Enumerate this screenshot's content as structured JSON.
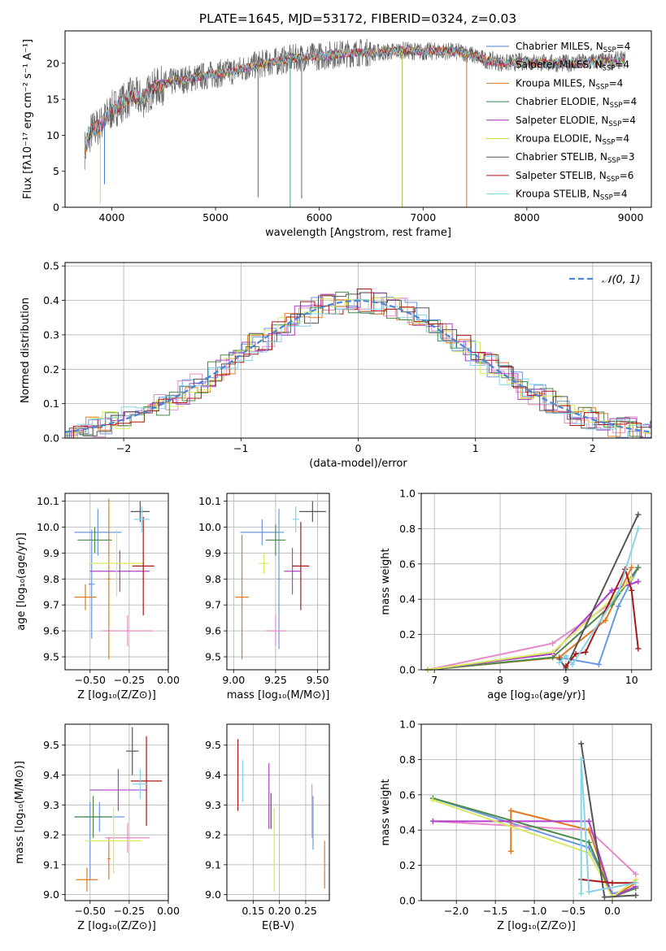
{
  "figure": {
    "title": "PLATE=1645, MJD=53172, FIBERID=0324, z=0.03"
  },
  "legend1": [
    {
      "name": "Chabrier MILES, N",
      "sub": "SSP",
      "val": "=4",
      "color": "#4a7cc8"
    },
    {
      "name": "Salpeter MILES, N",
      "sub": "SSP",
      "val": "=4",
      "color": "#d9447b"
    },
    {
      "name": "Kroupa MILES, N",
      "sub": "SSP",
      "val": "=4",
      "color": "#d07a1c"
    },
    {
      "name": "Chabrier ELODIE, N",
      "sub": "SSP",
      "val": "=4",
      "color": "#2e8b57"
    },
    {
      "name": "Salpeter ELODIE, N",
      "sub": "SSP",
      "val": "=4",
      "color": "#a42fb8"
    },
    {
      "name": "Kroupa ELODIE, N",
      "sub": "SSP",
      "val": "=4",
      "color": "#d5d93a"
    },
    {
      "name": "Chabrier STELIB, N",
      "sub": "SSP",
      "val": "=3",
      "color": "#555555"
    },
    {
      "name": "Salpeter STELIB, N",
      "sub": "SSP",
      "val": "=6",
      "color": "#b01010"
    },
    {
      "name": "Kroupa STELIB, N",
      "sub": "SSP",
      "val": "=4",
      "color": "#7fd6e0"
    }
  ],
  "series_colors": [
    "#6a98e0",
    "#e68ac8",
    "#e07b22",
    "#4a8a4a",
    "#b040c8",
    "#d8ea60",
    "#555555",
    "#a81818",
    "#86d4e6"
  ],
  "chart_data": [
    {
      "id": "spectrum",
      "type": "line",
      "title": "PLATE=1645, MJD=53172, FIBERID=0324, z=0.03",
      "xlabel": "wavelength [Angstrom, rest frame]",
      "ylabel": "Flux [fλ10⁻¹⁷ erg cm⁻² s⁻¹ A⁻¹]",
      "xlim": [
        3550,
        9200
      ],
      "ylim": [
        0,
        24.5
      ],
      "xticks": [
        4000,
        5000,
        6000,
        7000,
        8000,
        9000
      ],
      "yticks": [
        0,
        5,
        10,
        15,
        20
      ],
      "continuum": [
        [
          3740,
          8
        ],
        [
          3800,
          10.5
        ],
        [
          3900,
          11.5
        ],
        [
          4000,
          13.5
        ],
        [
          4100,
          14.5
        ],
        [
          4200,
          15.5
        ],
        [
          4300,
          15.0
        ],
        [
          4400,
          16.5
        ],
        [
          4600,
          17.5
        ],
        [
          4800,
          18.0
        ],
        [
          5000,
          18.5
        ],
        [
          5200,
          19.0
        ],
        [
          5400,
          19.8
        ],
        [
          5600,
          20.3
        ],
        [
          5800,
          20.8
        ],
        [
          6000,
          21.0
        ],
        [
          6200,
          21.3
        ],
        [
          6400,
          21.5
        ],
        [
          6600,
          21.5
        ],
        [
          6800,
          21.8
        ],
        [
          7000,
          21.6
        ],
        [
          7200,
          21.7
        ],
        [
          7400,
          21.5
        ],
        [
          7600,
          20.5
        ],
        [
          7800,
          20.0
        ],
        [
          8000,
          20.3
        ],
        [
          8200,
          20.0
        ],
        [
          8400,
          20.0
        ],
        [
          8600,
          20.2
        ],
        [
          8800,
          20.3
        ],
        [
          8950,
          20.5
        ]
      ],
      "dips": [
        [
          3890,
          0.5
        ],
        [
          3930,
          3.2
        ],
        [
          5410,
          1.4
        ],
        [
          5720,
          0.0
        ],
        [
          5830,
          1.2
        ],
        [
          6800,
          0.0
        ],
        [
          7420,
          0.0
        ]
      ]
    },
    {
      "id": "residuals",
      "type": "histogram",
      "xlabel": "(data-model)/error",
      "ylabel": "Normed distribution",
      "xlim": [
        -2.5,
        2.5
      ],
      "ylim": [
        0,
        0.51
      ],
      "xticks": [
        -2,
        -1,
        0,
        1,
        2
      ],
      "yticks": [
        0.0,
        0.1,
        0.2,
        0.3,
        0.4,
        0.5
      ],
      "legend": "𝒩(0, 1)",
      "curve": {
        "mean": 0,
        "sigma": 1
      }
    },
    {
      "id": "age_vs_Z",
      "type": "errorbar",
      "xlabel": "Z [log₁₀(Z/Z⊙)]",
      "ylabel": "age  [log₁₀(age/yr)]",
      "xlim": [
        -0.66,
        0.0
      ],
      "ylim": [
        9.45,
        10.13
      ],
      "xticks": [
        -0.5,
        -0.25,
        0.0
      ],
      "xtick_labels": [
        "−0.50",
        "−0.25",
        "0.00"
      ],
      "yticks": [
        9.5,
        9.6,
        9.7,
        9.8,
        9.9,
        10.0,
        10.1
      ],
      "points": [
        {
          "x": -0.45,
          "y": 9.98,
          "xerr": 0.15,
          "yerr": 0.09,
          "c": 0
        },
        {
          "x": -0.49,
          "y": 9.78,
          "xerr": 0.02,
          "yerr": 0.21,
          "c": 0
        },
        {
          "x": -0.26,
          "y": 9.6,
          "xerr": 0.16,
          "yerr": 0.06,
          "c": 1
        },
        {
          "x": -0.53,
          "y": 9.73,
          "xerr": 0.07,
          "yerr": 0.05,
          "c": 2
        },
        {
          "x": -0.38,
          "y": 9.8,
          "xerr": 0.01,
          "yerr": 0.31,
          "c": 2
        },
        {
          "x": -0.47,
          "y": 9.95,
          "xerr": 0.11,
          "yerr": 0.05,
          "c": 3
        },
        {
          "x": -0.31,
          "y": 9.83,
          "xerr": 0.19,
          "yerr": 0.08,
          "c": 4
        },
        {
          "x": -0.33,
          "y": 9.86,
          "xerr": 0.18,
          "yerr": 0.13,
          "c": 5
        },
        {
          "x": -0.18,
          "y": 10.06,
          "xerr": 0.06,
          "yerr": 0.04,
          "c": 6
        },
        {
          "x": -0.16,
          "y": 9.85,
          "xerr": 0.07,
          "yerr": 0.19,
          "c": 7
        },
        {
          "x": -0.17,
          "y": 10.03,
          "xerr": 0.05,
          "yerr": 0.05,
          "c": 8
        }
      ]
    },
    {
      "id": "age_vs_mass",
      "type": "errorbar",
      "xlabel": "mass [log₁₀(M/M⊙)]",
      "xlim": [
        8.96,
        9.57
      ],
      "ylim": [
        9.45,
        10.13
      ],
      "xticks": [
        9.0,
        9.25,
        9.5
      ],
      "xtick_labels": [
        "9.00",
        "9.25",
        "9.50"
      ],
      "yticks": [
        9.5,
        9.6,
        9.7,
        9.8,
        9.9,
        10.0,
        10.1
      ],
      "points": [
        {
          "x": 9.17,
          "y": 9.98,
          "xerr": 0.13,
          "yerr": 0.05,
          "c": 0
        },
        {
          "x": 9.27,
          "y": 9.8,
          "xerr": 0.01,
          "yerr": 0.27,
          "c": 0
        },
        {
          "x": 9.25,
          "y": 9.6,
          "xerr": 0.06,
          "yerr": 0.06,
          "c": 1
        },
        {
          "x": 9.05,
          "y": 9.73,
          "xerr": 0.04,
          "yerr": 0.24,
          "c": 2
        },
        {
          "x": 9.25,
          "y": 9.95,
          "xerr": 0.06,
          "yerr": 0.06,
          "c": 3
        },
        {
          "x": 9.35,
          "y": 9.83,
          "xerr": 0.05,
          "yerr": 0.09,
          "c": 4
        },
        {
          "x": 9.18,
          "y": 9.86,
          "xerr": 0.03,
          "yerr": 0.04,
          "c": 5
        },
        {
          "x": 9.47,
          "y": 10.06,
          "xerr": 0.08,
          "yerr": 0.04,
          "c": 6
        },
        {
          "x": 9.4,
          "y": 9.85,
          "xerr": 0.05,
          "yerr": 0.17,
          "c": 7
        },
        {
          "x": 9.37,
          "y": 10.03,
          "xerr": 0.02,
          "yerr": 0.05,
          "c": 8
        }
      ]
    },
    {
      "id": "mass_weight_vs_age",
      "type": "line",
      "xlabel": "age  [log₁₀(age/yr)]",
      "ylabel": "mass weight",
      "xlim": [
        6.8,
        10.3
      ],
      "ylim": [
        0,
        1.0
      ],
      "xticks": [
        7,
        8,
        9,
        10
      ],
      "yticks": [
        0.0,
        0.2,
        0.4,
        0.6,
        0.8,
        1.0
      ],
      "series": [
        {
          "c": 0,
          "points": [
            [
              6.9,
              0.0
            ],
            [
              8.9,
              0.07
            ],
            [
              9.5,
              0.03
            ],
            [
              9.8,
              0.36
            ],
            [
              10.1,
              0.58
            ]
          ]
        },
        {
          "c": 1,
          "points": [
            [
              6.9,
              0.0
            ],
            [
              8.8,
              0.15
            ],
            [
              9.7,
              0.38
            ],
            [
              10.1,
              0.58
            ]
          ]
        },
        {
          "c": 2,
          "points": [
            [
              6.9,
              0.0
            ],
            [
              8.9,
              0.07
            ],
            [
              9.6,
              0.28
            ],
            [
              10.0,
              0.58
            ]
          ]
        },
        {
          "c": 3,
          "points": [
            [
              6.9,
              0.0
            ],
            [
              8.8,
              0.07
            ],
            [
              9.7,
              0.37
            ],
            [
              10.1,
              0.58
            ]
          ]
        },
        {
          "c": 4,
          "points": [
            [
              6.9,
              0.0
            ],
            [
              8.8,
              0.09
            ],
            [
              9.7,
              0.45
            ],
            [
              10.1,
              0.5
            ]
          ]
        },
        {
          "c": 5,
          "points": [
            [
              6.9,
              0.0
            ],
            [
              8.8,
              0.1
            ],
            [
              9.7,
              0.4
            ],
            [
              10.0,
              0.52
            ]
          ]
        },
        {
          "c": 6,
          "points": [
            [
              8.9,
              0.06
            ],
            [
              9.0,
              0.01
            ],
            [
              10.1,
              0.88
            ]
          ]
        },
        {
          "c": 7,
          "points": [
            [
              9.0,
              0.02
            ],
            [
              9.15,
              0.09
            ],
            [
              9.3,
              0.1
            ],
            [
              9.9,
              0.57
            ],
            [
              10.0,
              0.45
            ],
            [
              10.1,
              0.12
            ]
          ]
        },
        {
          "c": 8,
          "points": [
            [
              8.9,
              0.04
            ],
            [
              9.0,
              0.08
            ],
            [
              9.1,
              0.03
            ],
            [
              9.8,
              0.44
            ],
            [
              10.1,
              0.8
            ]
          ]
        }
      ]
    },
    {
      "id": "mass_vs_Z",
      "type": "errorbar",
      "xlabel": "Z [log₁₀(Z/Z⊙)]",
      "ylabel": "mass [log₁₀(M/M⊙)]",
      "xlim": [
        -0.66,
        0.0
      ],
      "ylim": [
        8.98,
        9.57
      ],
      "xticks": [
        -0.5,
        -0.25,
        0.0
      ],
      "xtick_labels": [
        "−0.50",
        "−0.25",
        "0.00"
      ],
      "yticks": [
        9.0,
        9.1,
        9.2,
        9.3,
        9.4,
        9.5
      ],
      "points": [
        {
          "x": -0.44,
          "y": 9.26,
          "xerr": 0.16,
          "yerr": 0.05,
          "c": 0
        },
        {
          "x": -0.5,
          "y": 9.18,
          "xerr": 0.01,
          "yerr": 0.13,
          "c": 0
        },
        {
          "x": -0.26,
          "y": 9.19,
          "xerr": 0.14,
          "yerr": 0.05,
          "c": 1
        },
        {
          "x": -0.52,
          "y": 9.05,
          "xerr": 0.07,
          "yerr": 0.04,
          "c": 2
        },
        {
          "x": -0.38,
          "y": 9.12,
          "xerr": 0.01,
          "yerr": 0.07,
          "c": 2
        },
        {
          "x": -0.48,
          "y": 9.26,
          "xerr": 0.12,
          "yerr": 0.07,
          "c": 3
        },
        {
          "x": -0.32,
          "y": 9.35,
          "xerr": 0.18,
          "yerr": 0.07,
          "c": 4
        },
        {
          "x": -0.35,
          "y": 9.18,
          "xerr": 0.18,
          "yerr": 0.11,
          "c": 5
        },
        {
          "x": -0.23,
          "y": 9.48,
          "xerr": 0.04,
          "yerr": 0.08,
          "c": 6
        },
        {
          "x": -0.14,
          "y": 9.38,
          "xerr": 0.1,
          "yerr": 0.15,
          "c": 7
        },
        {
          "x": -0.18,
          "y": 9.37,
          "xerr": 0.05,
          "yerr": 0.05,
          "c": 8
        }
      ]
    },
    {
      "id": "mass_vs_ebv",
      "type": "errorbar",
      "xlabel": "E(B-V)",
      "xlim": [
        0.1,
        0.295
      ],
      "ylim": [
        8.98,
        9.57
      ],
      "xticks": [
        0.15,
        0.2,
        0.25
      ],
      "xtick_labels": [
        "0.15",
        "0.20",
        "0.25"
      ],
      "yticks": [
        9.0,
        9.1,
        9.2,
        9.3,
        9.4,
        9.5
      ],
      "points": [
        {
          "x": 0.121,
          "y": 9.4,
          "yerr": 0.12,
          "c": 7
        },
        {
          "x": 0.13,
          "y": 9.38,
          "yerr": 0.07,
          "c": 8
        },
        {
          "x": 0.18,
          "y": 9.33,
          "yerr": 0.11,
          "c": 4
        },
        {
          "x": 0.184,
          "y": 9.28,
          "yerr": 0.06,
          "c": 6
        },
        {
          "x": 0.19,
          "y": 9.15,
          "yerr": 0.14,
          "c": 5
        },
        {
          "x": 0.262,
          "y": 9.28,
          "yerr": 0.09,
          "c": 1
        },
        {
          "x": 0.264,
          "y": 9.24,
          "yerr": 0.09,
          "c": 0
        },
        {
          "x": 0.286,
          "y": 9.1,
          "yerr": 0.08,
          "c": 2
        }
      ]
    },
    {
      "id": "mass_weight_vs_Z",
      "type": "line",
      "xlabel": "Z [log₁₀(Z/Z⊙)]",
      "ylabel": "mass weight",
      "xlim": [
        -2.45,
        0.5
      ],
      "ylim": [
        0,
        1.0
      ],
      "xticks": [
        -2.0,
        -1.5,
        -1.0,
        -0.5,
        0.0
      ],
      "xtick_labels": [
        "−2.0",
        "−1.5",
        "−1.0",
        "−0.5",
        "0.0"
      ],
      "yticks": [
        0.0,
        0.2,
        0.4,
        0.6,
        0.8,
        1.0
      ],
      "series": [
        {
          "c": 0,
          "points": [
            [
              -2.3,
              0.58
            ],
            [
              -0.3,
              0.3
            ],
            [
              0.0,
              0.04
            ],
            [
              0.3,
              0.07
            ]
          ]
        },
        {
          "c": 1,
          "points": [
            [
              -2.3,
              0.45
            ],
            [
              -0.3,
              0.4
            ],
            [
              0.3,
              0.15
            ]
          ]
        },
        {
          "c": 2,
          "points": [
            [
              -1.3,
              0.28
            ],
            [
              -1.3,
              0.51
            ],
            [
              -0.3,
              0.4
            ],
            [
              0.0,
              0.02
            ],
            [
              0.3,
              0.1
            ]
          ]
        },
        {
          "c": 3,
          "points": [
            [
              -2.3,
              0.58
            ],
            [
              -0.3,
              0.33
            ],
            [
              0.0,
              0.02
            ],
            [
              0.3,
              0.07
            ]
          ]
        },
        {
          "c": 4,
          "points": [
            [
              -2.3,
              0.45
            ],
            [
              -0.3,
              0.45
            ],
            [
              0.0,
              0.02
            ],
            [
              0.3,
              0.08
            ]
          ]
        },
        {
          "c": 5,
          "points": [
            [
              -2.3,
              0.57
            ],
            [
              -0.3,
              0.27
            ],
            [
              0.0,
              0.02
            ],
            [
              0.3,
              0.12
            ]
          ]
        },
        {
          "c": 6,
          "points": [
            [
              -0.4,
              0.89
            ],
            [
              -0.1,
              0.02
            ],
            [
              0.3,
              0.03
            ]
          ]
        },
        {
          "c": 7,
          "points": [
            [
              -0.4,
              0.12
            ],
            [
              0.0,
              0.1
            ],
            [
              0.3,
              0.1
            ]
          ]
        },
        {
          "c": 8,
          "points": [
            [
              -0.4,
              0.04
            ],
            [
              -0.4,
              0.8
            ],
            [
              -0.3,
              0.05
            ],
            [
              0.3,
              0.1
            ]
          ]
        }
      ]
    }
  ]
}
